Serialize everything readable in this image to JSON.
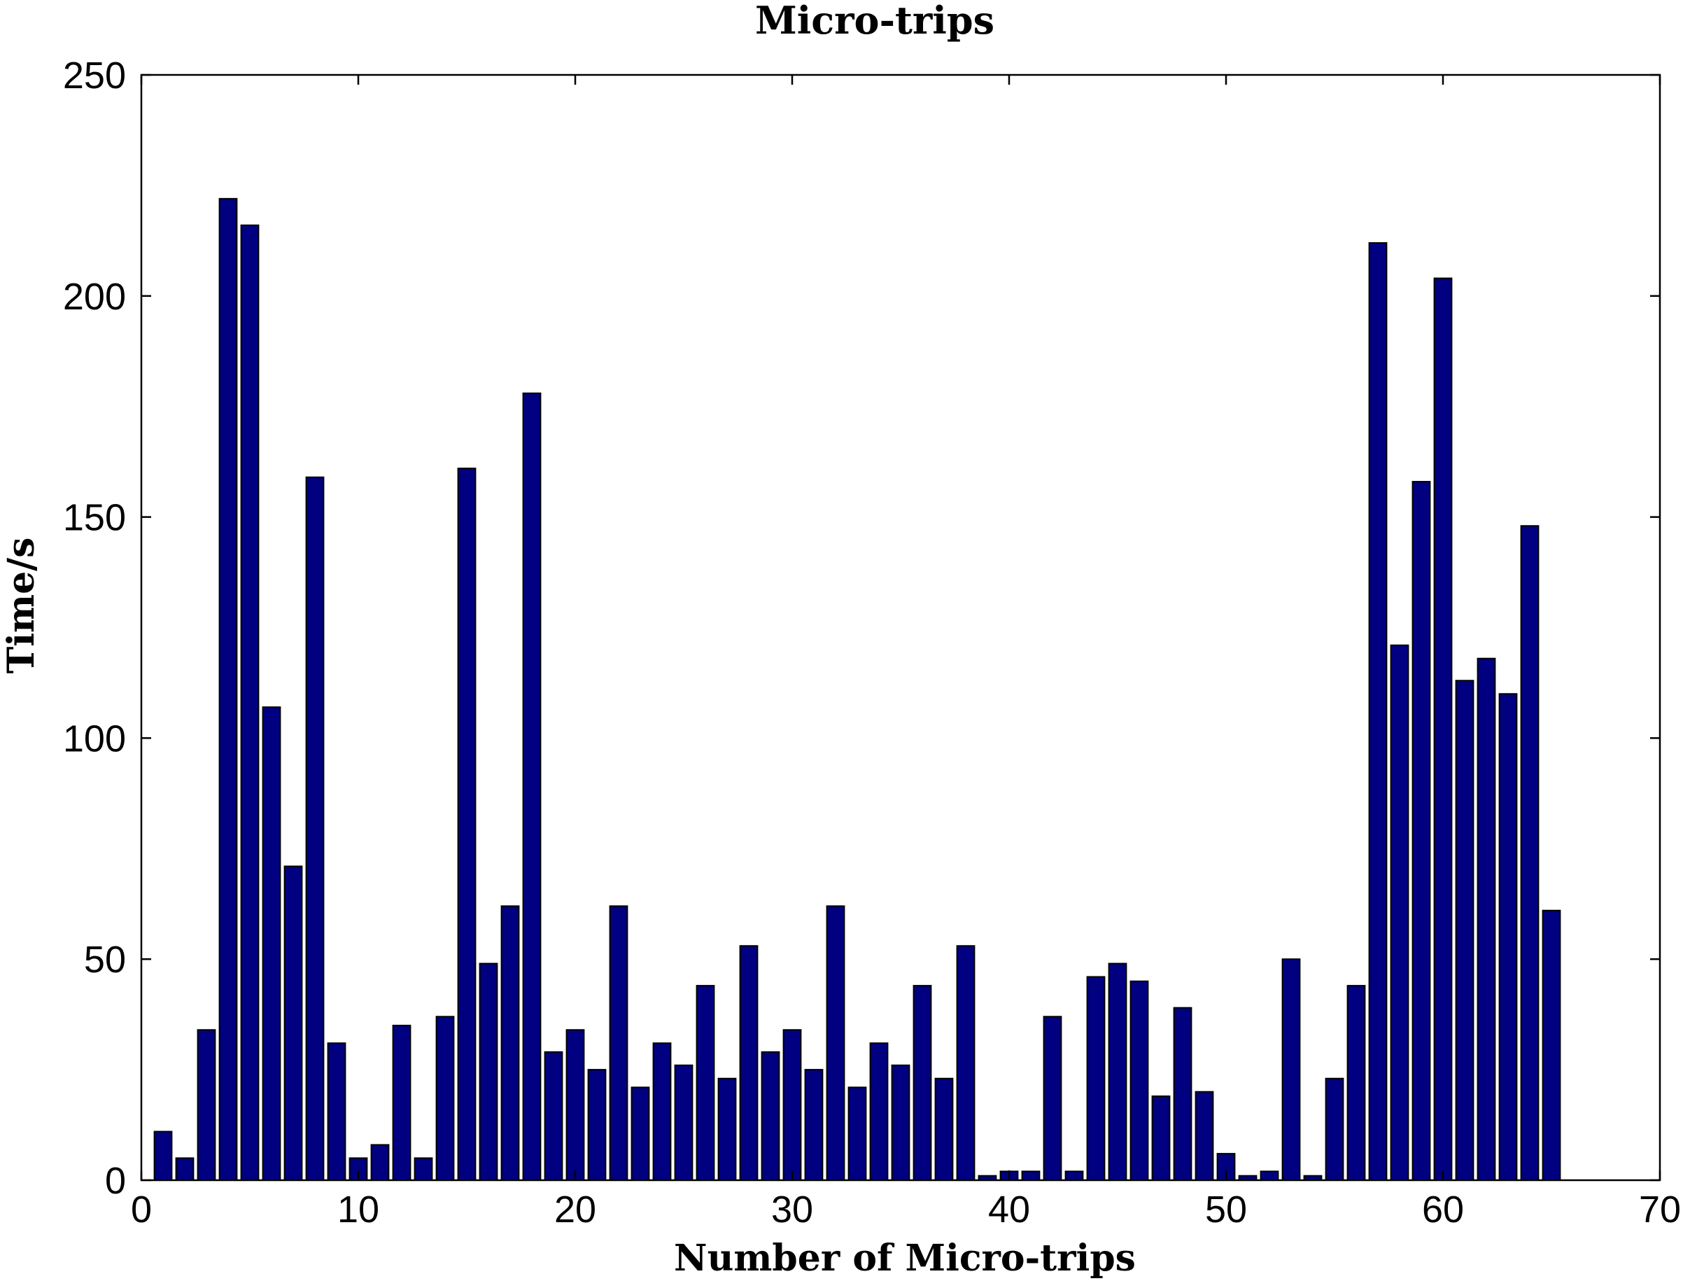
{
  "chart_data": {
    "type": "bar",
    "title": "Micro-trips",
    "xlabel": "Number of Micro-trips",
    "ylabel": "Time/s",
    "xlim": [
      0,
      70
    ],
    "ylim": [
      0,
      250
    ],
    "xticks": [
      0,
      10,
      20,
      30,
      40,
      50,
      60,
      70
    ],
    "yticks": [
      0,
      50,
      100,
      150,
      200,
      250
    ],
    "grid": false,
    "bar_color": "#000080",
    "bar_width": 0.8,
    "x": [
      1,
      2,
      3,
      4,
      5,
      6,
      7,
      8,
      9,
      10,
      11,
      12,
      13,
      14,
      15,
      16,
      17,
      18,
      19,
      20,
      21,
      22,
      23,
      24,
      25,
      26,
      27,
      28,
      29,
      30,
      31,
      32,
      33,
      34,
      35,
      36,
      37,
      38,
      39,
      40,
      41,
      42,
      43,
      44,
      45,
      46,
      47,
      48,
      49,
      50,
      51,
      52,
      53,
      54,
      55,
      56,
      57,
      58,
      59,
      60,
      61,
      62,
      63,
      64,
      65
    ],
    "values": [
      11,
      5,
      34,
      222,
      216,
      107,
      71,
      159,
      31,
      5,
      8,
      35,
      5,
      37,
      161,
      49,
      62,
      178,
      29,
      34,
      25,
      62,
      21,
      31,
      26,
      44,
      23,
      53,
      29,
      34,
      25,
      62,
      21,
      31,
      26,
      44,
      23,
      53,
      1,
      2,
      2,
      37,
      2,
      46,
      49,
      45,
      19,
      39,
      20,
      6,
      1,
      2,
      50,
      1,
      23,
      44,
      212,
      121,
      158,
      204,
      113,
      118,
      110,
      148,
      61
    ]
  }
}
